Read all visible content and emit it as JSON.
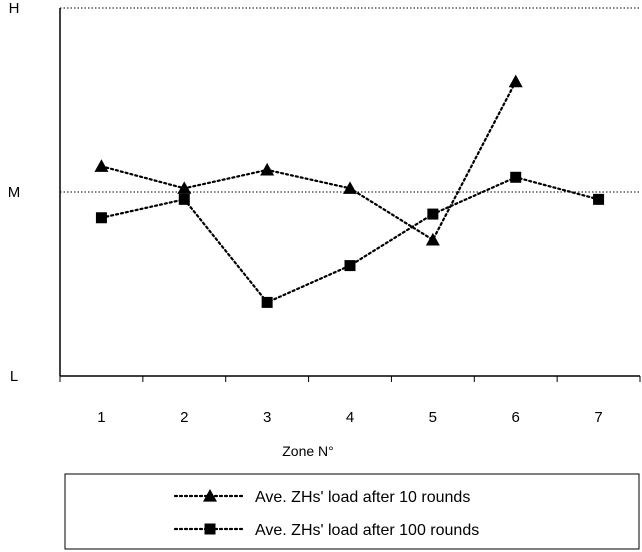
{
  "chart_data": {
    "type": "line",
    "title": "",
    "xlabel": "Zone N°",
    "ylabel": "",
    "categories": [
      "1",
      "2",
      "3",
      "4",
      "5",
      "6",
      "7"
    ],
    "y_tick_labels": [
      "L",
      "M",
      "H"
    ],
    "ylim": [
      0,
      1
    ],
    "reference_lines": [
      {
        "y": 1.0,
        "style": "dotted"
      },
      {
        "y": 0.5,
        "style": "dotted"
      }
    ],
    "grid": false,
    "legend_position": "bottom",
    "series": [
      {
        "name": "Ave. ZHs' load after 10 rounds",
        "marker": "triangle",
        "line_style": "dotted",
        "color": "#000000",
        "values": [
          0.57,
          0.51,
          0.56,
          0.51,
          0.37,
          0.8,
          null
        ]
      },
      {
        "name": "Ave. ZHs' load after 100 rounds",
        "marker": "square",
        "line_style": "dotted",
        "color": "#000000",
        "values": [
          0.43,
          0.48,
          0.2,
          0.3,
          0.44,
          0.54,
          0.48
        ]
      }
    ]
  }
}
